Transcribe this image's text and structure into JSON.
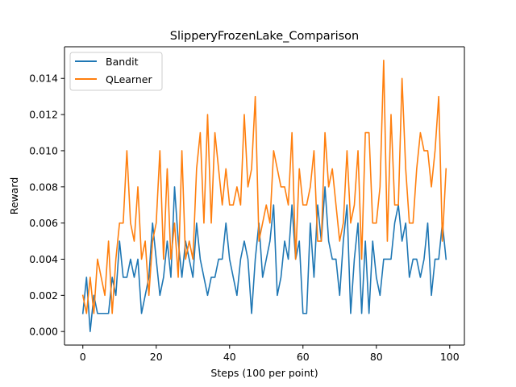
{
  "chart_data": {
    "type": "line",
    "title": "SlipperyFrozenLake_Comparison",
    "xlabel": "Steps (100 per point)",
    "ylabel": "Reward",
    "xlim": [
      -5,
      104
    ],
    "ylim": [
      -0.00075,
      0.01575
    ],
    "xticks": [
      0,
      20,
      40,
      60,
      80,
      100
    ],
    "yticks": [
      0.0,
      0.002,
      0.004,
      0.006,
      0.008,
      0.01,
      0.012,
      0.014
    ],
    "ytick_labels": [
      "0.000",
      "0.002",
      "0.004",
      "0.006",
      "0.008",
      "0.010",
      "0.012",
      "0.014"
    ],
    "legend": "top-left",
    "grid": false,
    "x": [
      0,
      1,
      2,
      3,
      4,
      5,
      6,
      7,
      8,
      9,
      10,
      11,
      12,
      13,
      14,
      15,
      16,
      17,
      18,
      19,
      20,
      21,
      22,
      23,
      24,
      25,
      26,
      27,
      28,
      29,
      30,
      31,
      32,
      33,
      34,
      35,
      36,
      37,
      38,
      39,
      40,
      41,
      42,
      43,
      44,
      45,
      46,
      47,
      48,
      49,
      50,
      51,
      52,
      53,
      54,
      55,
      56,
      57,
      58,
      59,
      60,
      61,
      62,
      63,
      64,
      65,
      66,
      67,
      68,
      69,
      70,
      71,
      72,
      73,
      74,
      75,
      76,
      77,
      78,
      79,
      80,
      81,
      82,
      83,
      84,
      85,
      86,
      87,
      88,
      89,
      90,
      91,
      92,
      93,
      94,
      95,
      96,
      97,
      98,
      99
    ],
    "series": [
      {
        "name": "Bandit",
        "color": "#1f77b4",
        "values": [
          0.001,
          0.003,
          0.0,
          0.002,
          0.001,
          0.001,
          0.001,
          0.001,
          0.003,
          0.002,
          0.005,
          0.003,
          0.003,
          0.004,
          0.003,
          0.004,
          0.001,
          0.002,
          0.003,
          0.006,
          0.004,
          0.002,
          0.003,
          0.005,
          0.003,
          0.008,
          0.005,
          0.003,
          0.005,
          0.004,
          0.003,
          0.006,
          0.004,
          0.003,
          0.002,
          0.003,
          0.003,
          0.004,
          0.004,
          0.006,
          0.004,
          0.003,
          0.002,
          0.004,
          0.005,
          0.004,
          0.001,
          0.004,
          0.006,
          0.003,
          0.004,
          0.005,
          0.007,
          0.002,
          0.003,
          0.005,
          0.004,
          0.007,
          0.004,
          0.005,
          0.001,
          0.001,
          0.006,
          0.003,
          0.007,
          0.005,
          0.008,
          0.005,
          0.004,
          0.004,
          0.002,
          0.005,
          0.007,
          0.001,
          0.004,
          0.006,
          0.001,
          0.005,
          0.001,
          0.005,
          0.003,
          0.002,
          0.004,
          0.004,
          0.004,
          0.006,
          0.007,
          0.005,
          0.006,
          0.003,
          0.004,
          0.004,
          0.003,
          0.004,
          0.006,
          0.002,
          0.004,
          0.004,
          0.006,
          0.004
        ]
      },
      {
        "name": "QLearner",
        "color": "#ff7f0e",
        "values": [
          0.002,
          0.001,
          0.003,
          0.001,
          0.004,
          0.003,
          0.002,
          0.005,
          0.001,
          0.004,
          0.006,
          0.006,
          0.01,
          0.006,
          0.005,
          0.008,
          0.004,
          0.005,
          0.002,
          0.005,
          0.006,
          0.01,
          0.004,
          0.009,
          0.004,
          0.006,
          0.003,
          0.01,
          0.004,
          0.005,
          0.004,
          0.009,
          0.011,
          0.006,
          0.012,
          0.006,
          0.011,
          0.009,
          0.007,
          0.009,
          0.007,
          0.007,
          0.008,
          0.007,
          0.012,
          0.008,
          0.009,
          0.013,
          0.005,
          0.006,
          0.007,
          0.006,
          0.01,
          0.009,
          0.008,
          0.008,
          0.007,
          0.011,
          0.004,
          0.009,
          0.007,
          0.007,
          0.008,
          0.01,
          0.005,
          0.005,
          0.011,
          0.008,
          0.009,
          0.007,
          0.005,
          0.006,
          0.01,
          0.006,
          0.007,
          0.01,
          0.004,
          0.011,
          0.011,
          0.006,
          0.006,
          0.008,
          0.015,
          0.005,
          0.012,
          0.007,
          0.007,
          0.014,
          0.009,
          0.006,
          0.006,
          0.009,
          0.011,
          0.01,
          0.01,
          0.008,
          0.01,
          0.013,
          0.005,
          0.009
        ]
      }
    ]
  }
}
